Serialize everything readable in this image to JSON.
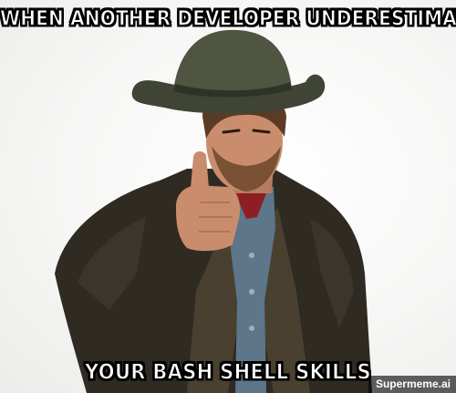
{
  "meme": {
    "top_caption": "WHEN ANOTHER DEVELOPER UNDERESTIMATES",
    "bottom_caption": "YOUR BASH SHELL SKILLS",
    "watermark": "Supermeme.ai"
  },
  "photo": {
    "subject": "cowboy-pointing-finger",
    "colors": {
      "background": "#f4f4f2",
      "hat": "#4f5541",
      "coat": "#2f2a22",
      "denim_shirt": "#5d7689",
      "skin": "#c98d6d"
    }
  }
}
